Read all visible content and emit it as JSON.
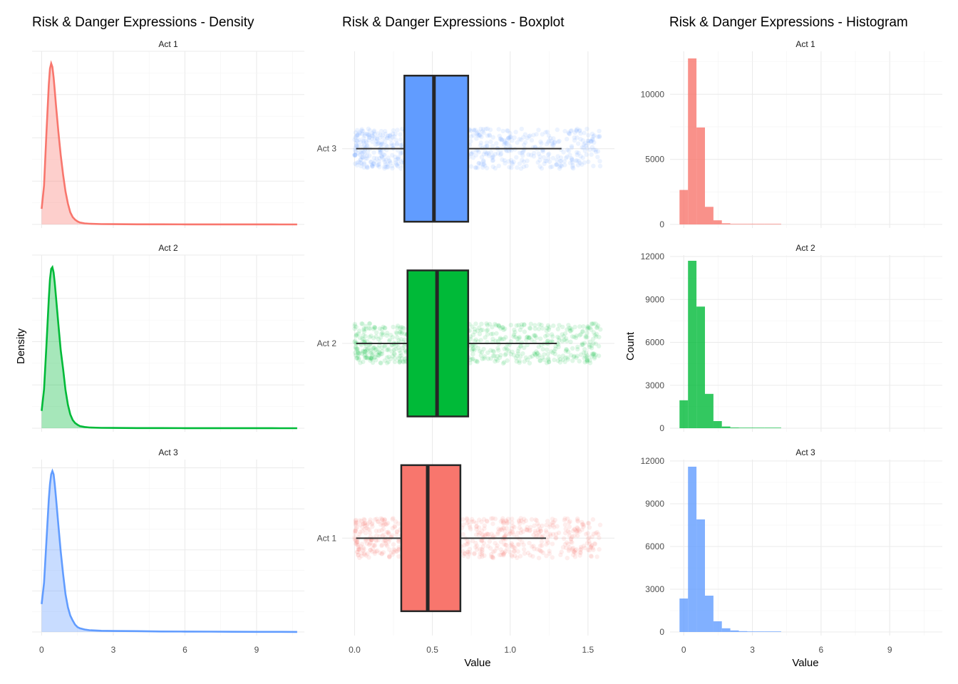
{
  "chart_data": [
    {
      "type": "area",
      "title": "Risk & Danger Expressions - Density",
      "xlabel": "",
      "ylabel": "Density",
      "xlim": [
        -0.4,
        11.0
      ],
      "x_ticks": [
        0,
        3,
        6,
        9
      ],
      "y_tick_labels_shown": false,
      "panels": [
        {
          "facet": "Act 1",
          "color": "#F8766D",
          "x": [
            0,
            0.1,
            0.2,
            0.3,
            0.35,
            0.4,
            0.45,
            0.5,
            0.55,
            0.6,
            0.7,
            0.8,
            0.9,
            1.0,
            1.1,
            1.2,
            1.3,
            1.4,
            1.5,
            1.6,
            1.8,
            2.0,
            2.5,
            3.0,
            4.0,
            5.0,
            6.0,
            7.0,
            8.0,
            9.0,
            10.0,
            10.7
          ],
          "y": [
            0.18,
            0.45,
            1.05,
            1.62,
            1.8,
            1.86,
            1.82,
            1.7,
            1.55,
            1.38,
            1.07,
            0.8,
            0.57,
            0.38,
            0.24,
            0.14,
            0.085,
            0.055,
            0.035,
            0.022,
            0.012,
            0.008,
            0.004,
            0.003,
            0.002,
            0.0015,
            0.001,
            0.001,
            0.0005,
            0.0005,
            0.0003,
            0.0002
          ],
          "ylim": [
            0,
            2.0
          ]
        },
        {
          "facet": "Act 2",
          "color": "#00BA38",
          "x": [
            0,
            0.1,
            0.2,
            0.3,
            0.35,
            0.4,
            0.45,
            0.5,
            0.55,
            0.6,
            0.7,
            0.8,
            0.9,
            1.0,
            1.1,
            1.2,
            1.3,
            1.4,
            1.5,
            1.6,
            1.8,
            2.0,
            2.5,
            3.0,
            4.0,
            5.0,
            6.0,
            7.0,
            8.0,
            9.0,
            10.0,
            10.7
          ],
          "y": [
            0.2,
            0.45,
            0.95,
            1.5,
            1.72,
            1.84,
            1.86,
            1.8,
            1.68,
            1.52,
            1.2,
            0.9,
            0.68,
            0.44,
            0.27,
            0.16,
            0.095,
            0.06,
            0.04,
            0.025,
            0.014,
            0.008,
            0.004,
            0.003,
            0.002,
            0.0015,
            0.001,
            0.001,
            0.0005,
            0.0005,
            0.0003,
            0.0002
          ],
          "ylim": [
            0,
            2.0
          ]
        },
        {
          "facet": "Act 3",
          "color": "#619CFF",
          "x": [
            0,
            0.1,
            0.2,
            0.3,
            0.35,
            0.4,
            0.45,
            0.5,
            0.55,
            0.6,
            0.7,
            0.8,
            0.9,
            1.0,
            1.1,
            1.2,
            1.3,
            1.4,
            1.5,
            1.6,
            1.8,
            2.0,
            2.5,
            3.0,
            4.0,
            5.0,
            6.0,
            7.0,
            8.0,
            9.0,
            10.0,
            10.7
          ],
          "y": [
            0.34,
            0.6,
            1.1,
            1.62,
            1.8,
            1.92,
            1.96,
            1.92,
            1.8,
            1.64,
            1.3,
            0.98,
            0.7,
            0.46,
            0.3,
            0.2,
            0.14,
            0.09,
            0.06,
            0.045,
            0.03,
            0.022,
            0.015,
            0.012,
            0.01,
            0.006,
            0.005,
            0.004,
            0.003,
            0.002,
            0.002,
            0.001
          ],
          "ylim": [
            0,
            2.1
          ]
        }
      ]
    },
    {
      "type": "boxplot",
      "title": "Risk & Danger Expressions - Boxplot",
      "xlabel": "Value",
      "ylabel": "",
      "xlim": [
        -0.08,
        1.67
      ],
      "x_ticks": [
        0.0,
        0.5,
        1.0,
        1.5
      ],
      "x_tick_labels": [
        "0.0",
        "0.5",
        "1.0",
        "1.5"
      ],
      "categories": [
        "Act 1",
        "Act 2",
        "Act 3"
      ],
      "boxes": [
        {
          "name": "Act 1",
          "color": "#F8766D",
          "whisker_low": 0.01,
          "q1": 0.3,
          "median": 0.47,
          "q3": 0.68,
          "whisker_high": 1.23,
          "jitter_range": [
            0.0,
            1.58
          ]
        },
        {
          "name": "Act 2",
          "color": "#00BA38",
          "whisker_low": 0.01,
          "q1": 0.34,
          "median": 0.53,
          "q3": 0.73,
          "whisker_high": 1.3,
          "jitter_range": [
            0.0,
            1.58
          ]
        },
        {
          "name": "Act 3",
          "color": "#619CFF",
          "whisker_low": 0.01,
          "q1": 0.32,
          "median": 0.51,
          "q3": 0.73,
          "whisker_high": 1.33,
          "jitter_range": [
            0.0,
            1.58
          ]
        }
      ]
    },
    {
      "type": "bar",
      "title": "Risk & Danger Expressions - Histogram",
      "xlabel": "Value",
      "ylabel": "Count",
      "xlim": [
        -0.6,
        11.3
      ],
      "x_ticks": [
        0,
        3,
        6,
        9
      ],
      "bin_width": 0.37,
      "bin_centers": [
        0.0,
        0.37,
        0.74,
        1.11,
        1.48,
        1.85,
        2.22,
        2.59,
        2.96,
        3.33,
        3.7,
        4.07
      ],
      "panels": [
        {
          "facet": "Act 1",
          "color": "#F8766D",
          "values": [
            2650,
            12750,
            7450,
            1350,
            320,
            90,
            40,
            20,
            10,
            5,
            3,
            2
          ],
          "ylim": [
            0,
            13300
          ],
          "y_ticks": [
            0,
            5000,
            10000
          ]
        },
        {
          "facet": "Act 2",
          "color": "#00BA38",
          "values": [
            1950,
            11700,
            8500,
            2400,
            500,
            120,
            50,
            25,
            12,
            6,
            3,
            2
          ],
          "ylim": [
            0,
            12100
          ],
          "y_ticks": [
            0,
            3000,
            6000,
            9000,
            12000
          ]
        },
        {
          "facet": "Act 3",
          "color": "#619CFF",
          "values": [
            2350,
            11600,
            7900,
            2550,
            750,
            260,
            110,
            60,
            40,
            25,
            15,
            10
          ],
          "ylim": [
            0,
            12100
          ],
          "y_ticks": [
            0,
            3000,
            6000,
            9000,
            12000
          ]
        }
      ]
    }
  ]
}
